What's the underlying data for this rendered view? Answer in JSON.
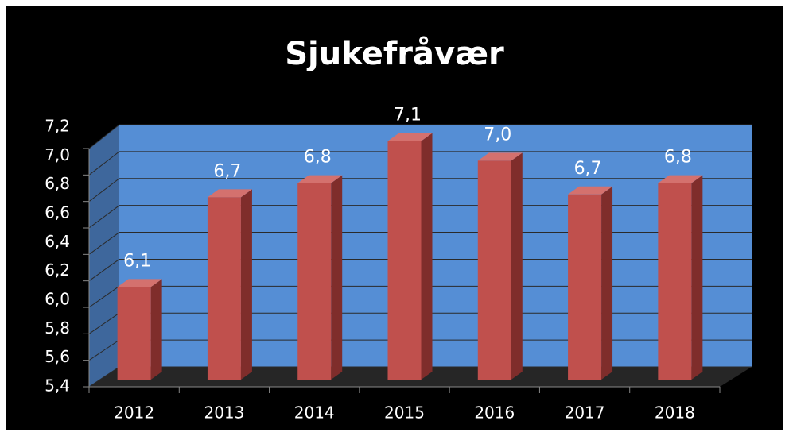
{
  "chart_data": {
    "type": "bar3d",
    "title": "Sjukefråvær",
    "categories": [
      "2012",
      "2013",
      "2014",
      "2015",
      "2016",
      "2017",
      "2018"
    ],
    "values": [
      6.06,
      6.7,
      6.8,
      7.1,
      6.96,
      6.72,
      6.8
    ],
    "value_labels": [
      "6,1",
      "6,7",
      "6,8",
      "7,1",
      "7,0",
      "6,7",
      "6,8"
    ],
    "color": "#c0504d",
    "ylim": [
      5.4,
      7.2
    ],
    "yticks": [
      {
        "value": 5.4,
        "label": "5,4"
      },
      {
        "value": 5.6,
        "label": "5,6"
      },
      {
        "value": 5.8,
        "label": "5,8"
      },
      {
        "value": 6.0,
        "label": "6,0"
      },
      {
        "value": 6.2,
        "label": "6,2"
      },
      {
        "value": 6.4,
        "label": "6,4"
      },
      {
        "value": 6.6,
        "label": "6,6"
      },
      {
        "value": 6.8,
        "label": "6,8"
      },
      {
        "value": 7.0,
        "label": "7,0"
      },
      {
        "value": 7.2,
        "label": "7,2"
      }
    ],
    "grid": true
  }
}
